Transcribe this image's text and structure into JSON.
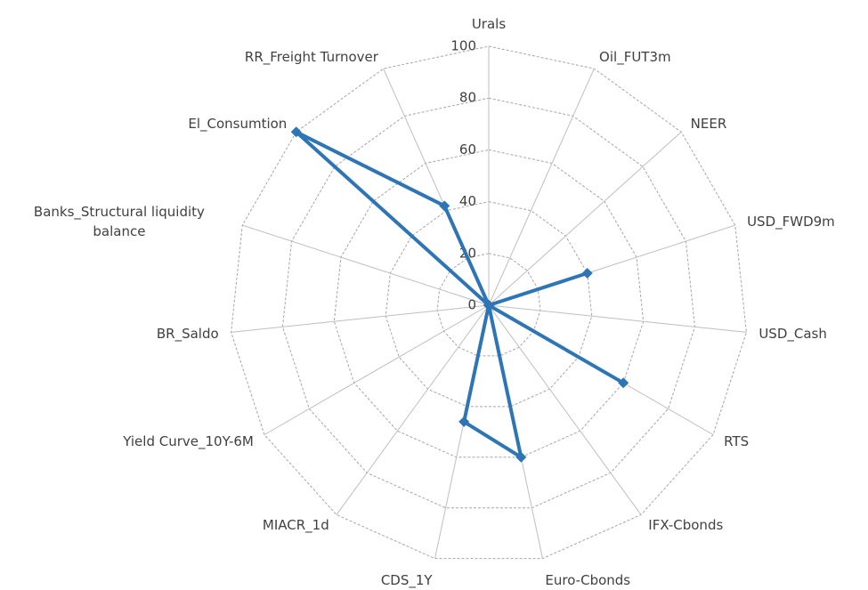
{
  "chart_data": {
    "type": "radar",
    "categories": [
      "Urals",
      "Oil_FUT3m",
      "NEER",
      "USD_FWD9m",
      "USD_Cash",
      "RTS",
      "IFX-Cbonds",
      "Euro-Cbonds",
      "CDS_1Y",
      "MIACR_1d",
      "Yield Curve_10Y-6M",
      "BR_Saldo",
      "Banks_Structural liquidity balance",
      "El_Consumtion",
      "RR_Freight Turnover"
    ],
    "values": [
      0,
      0,
      0,
      40,
      0,
      60,
      0,
      60,
      46,
      0,
      0,
      0,
      0,
      100,
      42
    ],
    "color": "#2e75b6",
    "ylim": [
      0,
      100
    ],
    "yticks": [
      0,
      20,
      40,
      60,
      80,
      100
    ],
    "grid": true
  }
}
